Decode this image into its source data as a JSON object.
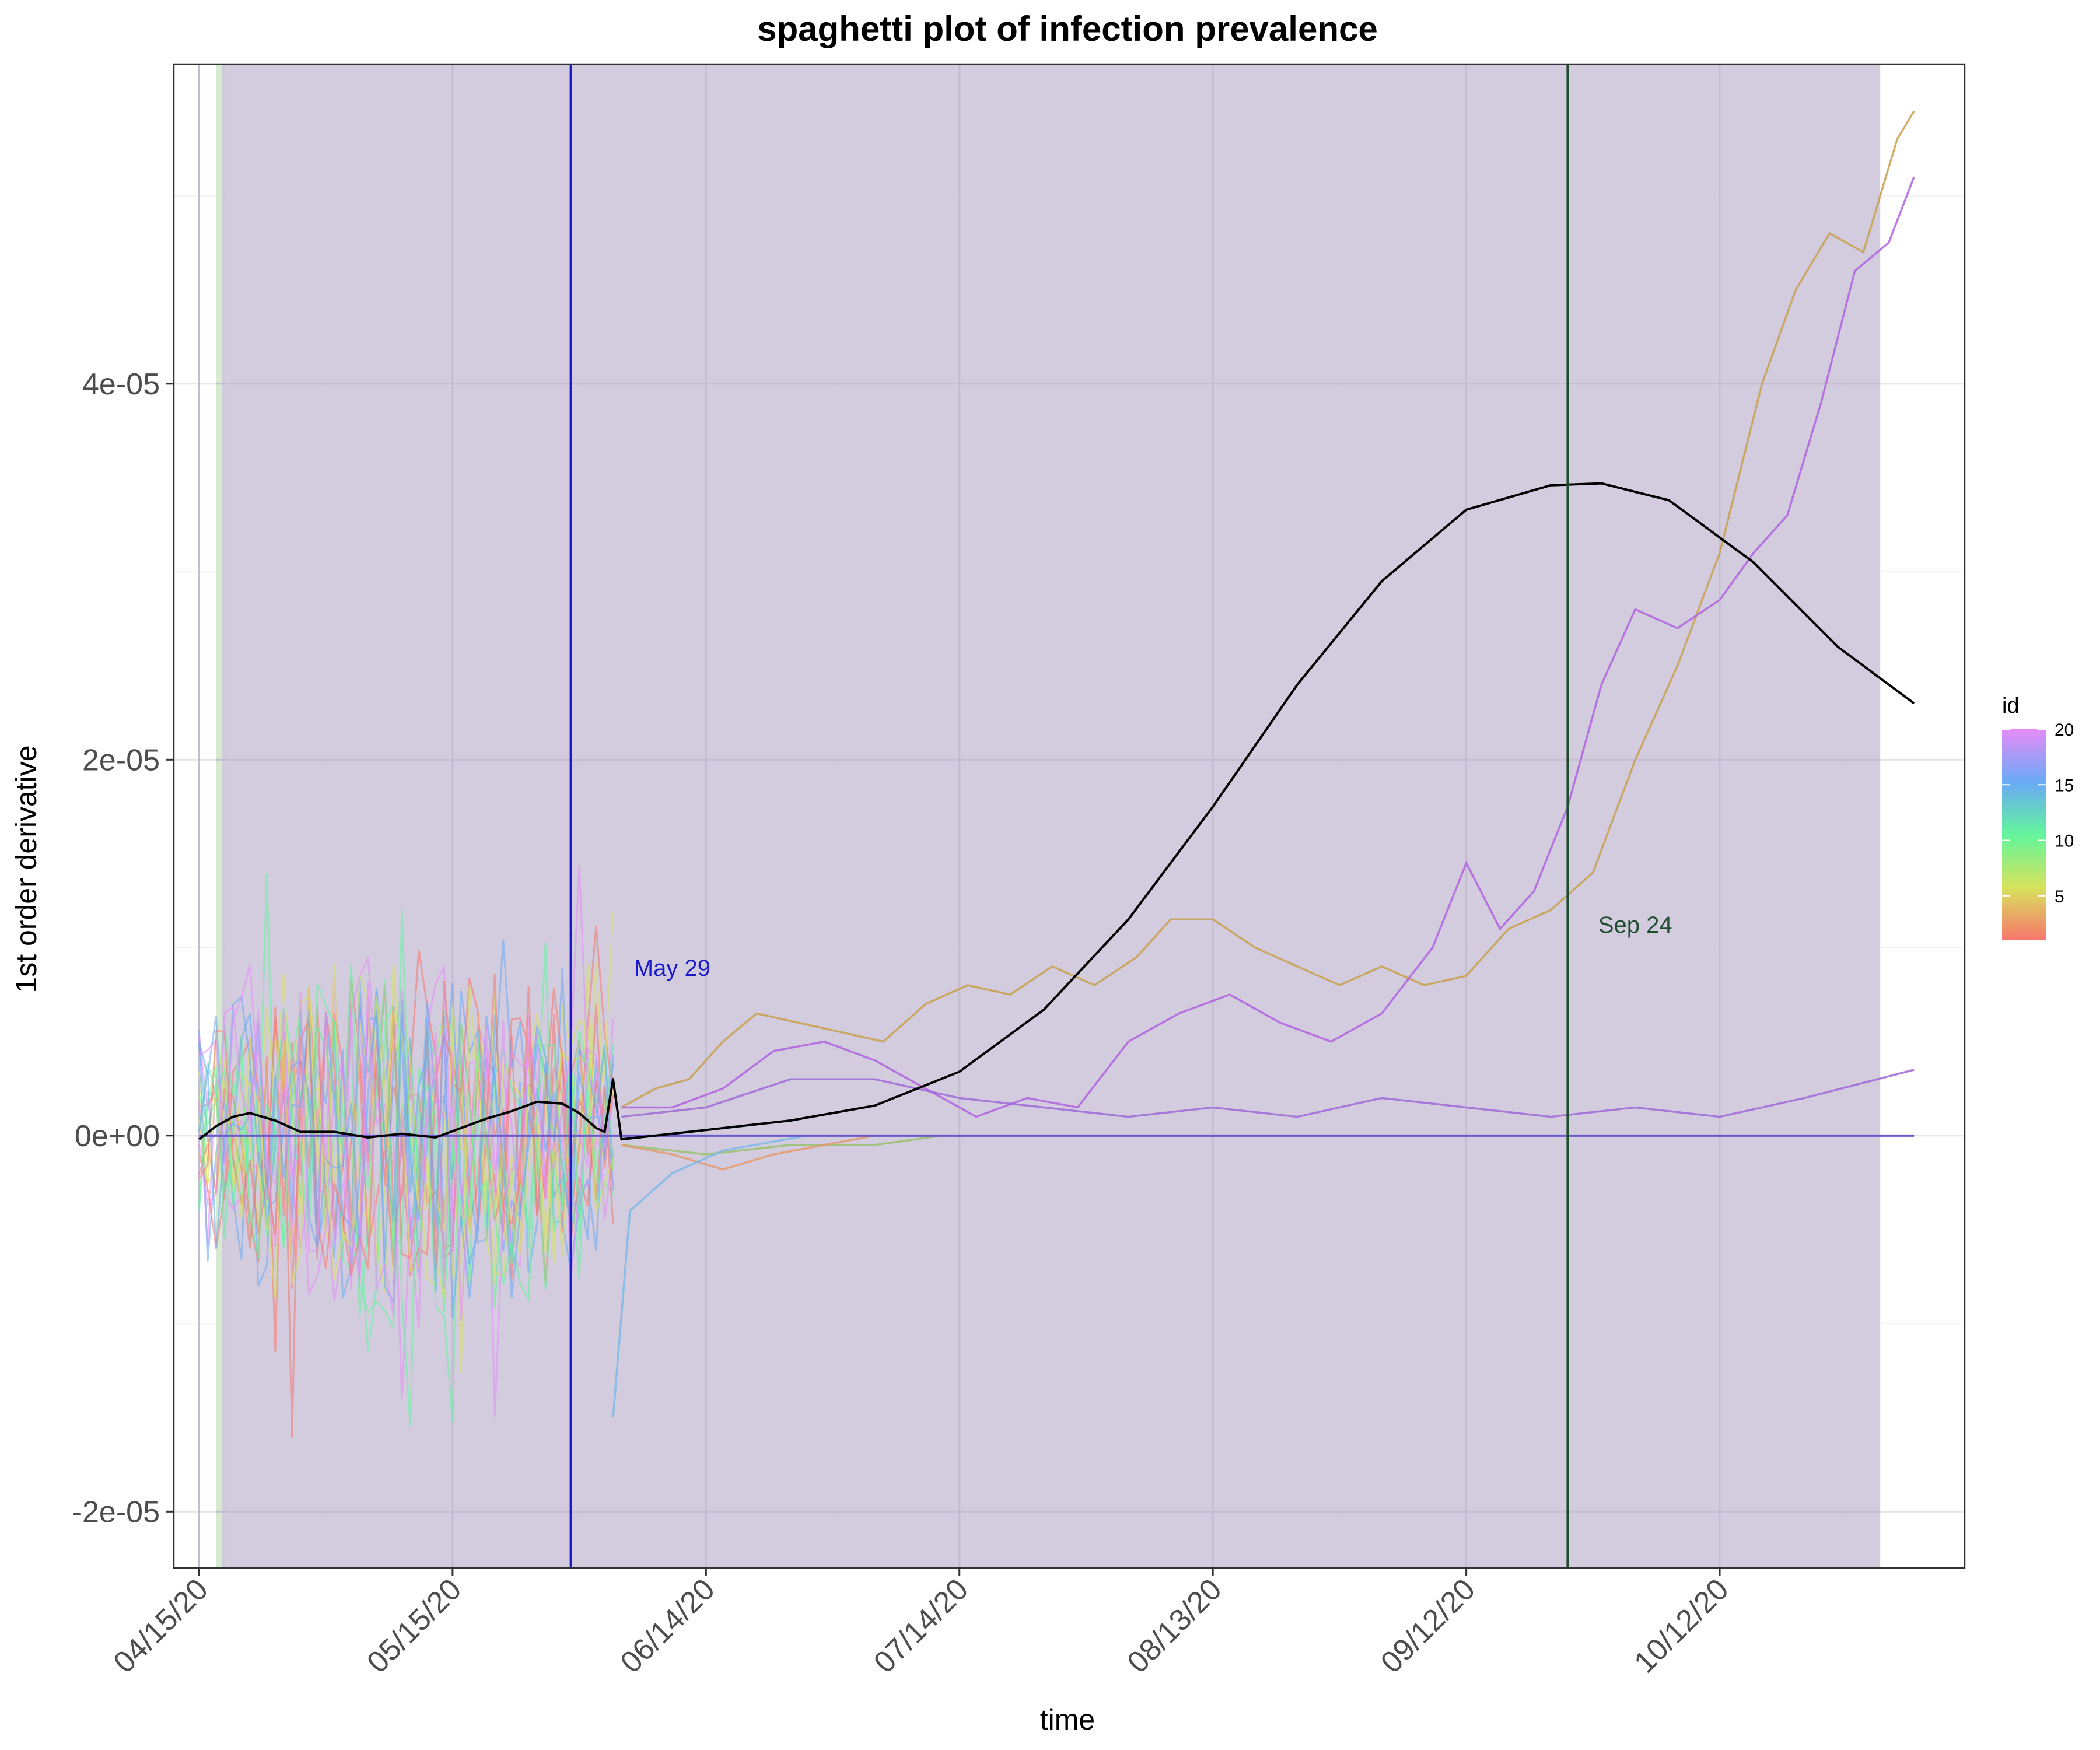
{
  "chart_data": {
    "type": "line",
    "title": "spaghetti plot of infection prevalence",
    "xlabel": "time",
    "ylabel": "1st order derivative",
    "x_type": "date",
    "xlim": [
      "2020-04-12",
      "2020-11-10"
    ],
    "ylim": [
      -2.3e-05,
      5.7e-05
    ],
    "grid": true,
    "x_ticks": [
      "2020-04-15",
      "2020-05-15",
      "2020-06-14",
      "2020-07-14",
      "2020-08-13",
      "2020-09-12",
      "2020-10-12"
    ],
    "x_tick_labels": [
      "04/15/20",
      "05/15/20",
      "06/14/20",
      "07/14/20",
      "08/13/20",
      "09/12/20",
      "10/12/20"
    ],
    "y_ticks": [
      -2e-05,
      0,
      2e-05,
      4e-05
    ],
    "y_tick_labels": [
      "-2e-05",
      "0e+00",
      "2e-05",
      "4e-05"
    ],
    "shaded_regions": [
      {
        "start": "2020-04-17",
        "end": "2020-10-31",
        "color": "#cfc8dc"
      }
    ],
    "green_band": {
      "start": "2020-04-17",
      "end": "2020-04-18",
      "color": "#d7e9cf"
    },
    "vertical_lines": [
      {
        "date": "2020-05-29",
        "label": "May 29",
        "color": "#1a1acc",
        "label_date": "2020-06-10",
        "label_y": 8.5e-06
      },
      {
        "date": "2020-09-24",
        "label": "Sep 24",
        "color": "#1f4d2e",
        "label_date": "2020-10-02",
        "label_y": 1.08e-05
      }
    ],
    "hline": {
      "y": 0,
      "color": "#6a5acd"
    },
    "legend": {
      "title": "id",
      "type": "colorbar",
      "min": 1,
      "max": 20,
      "ticks": [
        "5",
        "10",
        "15",
        "20"
      ],
      "colors": [
        "#f8766d",
        "#d7e35c",
        "#63f59c",
        "#6aa9f6",
        "#e58cf7"
      ]
    },
    "mean_curve": {
      "color": "#000000",
      "points": [
        [
          "2020-04-15",
          -2e-07
        ],
        [
          "2020-04-17",
          5e-07
        ],
        [
          "2020-04-19",
          1e-06
        ],
        [
          "2020-04-21",
          1.2e-06
        ],
        [
          "2020-04-24",
          8e-07
        ],
        [
          "2020-04-27",
          2e-07
        ],
        [
          "2020-05-01",
          2e-07
        ],
        [
          "2020-05-05",
          -1e-07
        ],
        [
          "2020-05-09",
          1e-07
        ],
        [
          "2020-05-13",
          -1e-07
        ],
        [
          "2020-05-16",
          4e-07
        ],
        [
          "2020-05-19",
          9e-07
        ],
        [
          "2020-05-22",
          1.3e-06
        ],
        [
          "2020-05-25",
          1.8e-06
        ],
        [
          "2020-05-28",
          1.7e-06
        ],
        [
          "2020-05-30",
          1.2e-06
        ],
        [
          "2020-06-01",
          4e-07
        ],
        [
          "2020-06-02",
          2e-07
        ],
        [
          "2020-06-03",
          3e-06
        ],
        [
          "2020-06-04",
          -2e-07
        ],
        [
          "2020-06-14",
          3e-07
        ],
        [
          "2020-06-24",
          8e-07
        ],
        [
          "2020-07-04",
          1.6e-06
        ],
        [
          "2020-07-14",
          3.4e-06
        ],
        [
          "2020-07-24",
          6.7e-06
        ],
        [
          "2020-08-03",
          1.15e-05
        ],
        [
          "2020-08-13",
          1.75e-05
        ],
        [
          "2020-08-23",
          2.4e-05
        ],
        [
          "2020-09-02",
          2.95e-05
        ],
        [
          "2020-09-12",
          3.33e-05
        ],
        [
          "2020-09-22",
          3.46e-05
        ],
        [
          "2020-09-28",
          3.47e-05
        ],
        [
          "2020-10-06",
          3.38e-05
        ],
        [
          "2020-10-16",
          3.05e-05
        ],
        [
          "2020-10-26",
          2.6e-05
        ],
        [
          "2020-11-04",
          2.3e-05
        ]
      ]
    },
    "series": [
      {
        "color": "#c9a050",
        "values": [
          [
            "2020-06-04",
            1.5e-06
          ],
          [
            "2020-06-08",
            2.5e-06
          ],
          [
            "2020-06-12",
            3e-06
          ],
          [
            "2020-06-16",
            5e-06
          ],
          [
            "2020-06-20",
            6.5e-06
          ],
          [
            "2020-06-25",
            6e-06
          ],
          [
            "2020-06-30",
            5.5e-06
          ],
          [
            "2020-07-05",
            5e-06
          ],
          [
            "2020-07-10",
            7e-06
          ],
          [
            "2020-07-15",
            8e-06
          ],
          [
            "2020-07-20",
            7.5e-06
          ],
          [
            "2020-07-25",
            9e-06
          ],
          [
            "2020-07-30",
            8e-06
          ],
          [
            "2020-08-04",
            9.5e-06
          ],
          [
            "2020-08-08",
            1.15e-05
          ],
          [
            "2020-08-13",
            1.15e-05
          ],
          [
            "2020-08-18",
            1e-05
          ],
          [
            "2020-08-23",
            9e-06
          ],
          [
            "2020-08-28",
            8e-06
          ],
          [
            "2020-09-02",
            9e-06
          ],
          [
            "2020-09-07",
            8e-06
          ],
          [
            "2020-09-12",
            8.5e-06
          ],
          [
            "2020-09-17",
            1.1e-05
          ],
          [
            "2020-09-22",
            1.2e-05
          ],
          [
            "2020-09-27",
            1.4e-05
          ],
          [
            "2020-10-02",
            2e-05
          ],
          [
            "2020-10-07",
            2.5e-05
          ],
          [
            "2020-10-12",
            3.1e-05
          ],
          [
            "2020-10-17",
            4e-05
          ],
          [
            "2020-10-21",
            4.5e-05
          ],
          [
            "2020-10-25",
            4.8e-05
          ],
          [
            "2020-10-29",
            4.7e-05
          ],
          [
            "2020-11-02",
            5.3e-05
          ],
          [
            "2020-11-04",
            5.45e-05
          ]
        ]
      },
      {
        "color": "#b163e0",
        "values": [
          [
            "2020-06-04",
            1.5e-06
          ],
          [
            "2020-06-10",
            1.5e-06
          ],
          [
            "2020-06-16",
            2.5e-06
          ],
          [
            "2020-06-22",
            4.5e-06
          ],
          [
            "2020-06-28",
            5e-06
          ],
          [
            "2020-07-04",
            4e-06
          ],
          [
            "2020-07-10",
            2.5e-06
          ],
          [
            "2020-07-16",
            1e-06
          ],
          [
            "2020-07-22",
            2e-06
          ],
          [
            "2020-07-28",
            1.5e-06
          ],
          [
            "2020-08-03",
            5e-06
          ],
          [
            "2020-08-09",
            6.5e-06
          ],
          [
            "2020-08-15",
            7.5e-06
          ],
          [
            "2020-08-21",
            6e-06
          ],
          [
            "2020-08-27",
            5e-06
          ],
          [
            "2020-09-02",
            6.5e-06
          ],
          [
            "2020-09-08",
            1e-05
          ],
          [
            "2020-09-12",
            1.45e-05
          ],
          [
            "2020-09-16",
            1.1e-05
          ],
          [
            "2020-09-20",
            1.3e-05
          ],
          [
            "2020-09-24",
            1.75e-05
          ],
          [
            "2020-09-28",
            2.4e-05
          ],
          [
            "2020-10-02",
            2.8e-05
          ],
          [
            "2020-10-07",
            2.7e-05
          ],
          [
            "2020-10-12",
            2.85e-05
          ],
          [
            "2020-10-16",
            3.1e-05
          ],
          [
            "2020-10-20",
            3.3e-05
          ],
          [
            "2020-10-24",
            3.9e-05
          ],
          [
            "2020-10-28",
            4.6e-05
          ],
          [
            "2020-11-01",
            4.75e-05
          ],
          [
            "2020-11-04",
            5.1e-05
          ]
        ]
      },
      {
        "color": "#a06ad8",
        "values": [
          [
            "2020-06-04",
            1e-06
          ],
          [
            "2020-06-14",
            1.5e-06
          ],
          [
            "2020-06-24",
            3e-06
          ],
          [
            "2020-07-04",
            3e-06
          ],
          [
            "2020-07-14",
            2e-06
          ],
          [
            "2020-07-24",
            1.5e-06
          ],
          [
            "2020-08-03",
            1e-06
          ],
          [
            "2020-08-13",
            1.5e-06
          ],
          [
            "2020-08-23",
            1e-06
          ],
          [
            "2020-09-02",
            2e-06
          ],
          [
            "2020-09-12",
            1.5e-06
          ],
          [
            "2020-09-22",
            1e-06
          ],
          [
            "2020-10-02",
            1.5e-06
          ],
          [
            "2020-10-12",
            1e-06
          ],
          [
            "2020-10-22",
            2e-06
          ],
          [
            "2020-11-04",
            3.5e-06
          ]
        ]
      },
      {
        "color": "#9ac070",
        "values": [
          [
            "2020-06-04",
            -5e-07
          ],
          [
            "2020-06-14",
            -1e-06
          ],
          [
            "2020-06-24",
            -5e-07
          ],
          [
            "2020-07-04",
            -5e-07
          ],
          [
            "2020-07-12",
            0
          ]
        ]
      },
      {
        "color": "#e39a70",
        "values": [
          [
            "2020-06-04",
            -5e-07
          ],
          [
            "2020-06-10",
            -1e-06
          ],
          [
            "2020-06-16",
            -1.8e-06
          ],
          [
            "2020-06-22",
            -1e-06
          ],
          [
            "2020-06-28",
            -5e-07
          ],
          [
            "2020-07-04",
            0
          ]
        ]
      },
      {
        "color": "#7fb8e6",
        "values": [
          [
            "2020-06-03",
            -1.5e-05
          ],
          [
            "2020-06-05",
            -4e-06
          ],
          [
            "2020-06-10",
            -2e-06
          ],
          [
            "2020-06-16",
            -8e-07
          ],
          [
            "2020-06-26",
            0
          ]
        ]
      }
    ],
    "noise_band": {
      "start": "2020-04-15",
      "end": "2020-06-03",
      "ymin": -1.9e-05,
      "ymax": 1.8e-05,
      "series_count": 20
    }
  }
}
